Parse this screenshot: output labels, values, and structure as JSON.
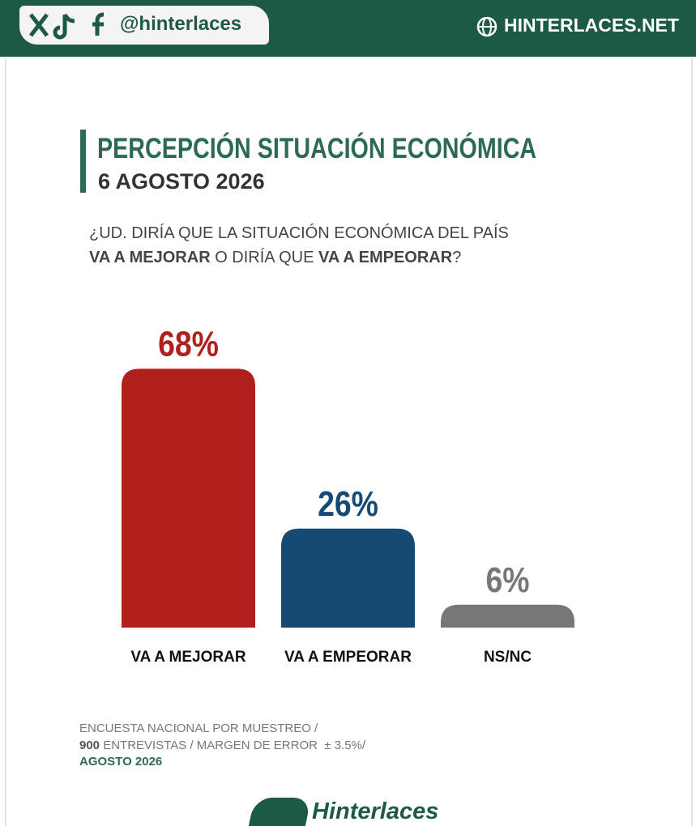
{
  "header": {
    "handle": "@hinterlaces",
    "website": "HINTERLACES.NET"
  },
  "chart_data": {
    "type": "bar",
    "title": "PERCEPCIÓN SITUACIÓN ECONÓMICA",
    "subtitle": "6 AGOSTO 2026",
    "question": {
      "line1": "¿UD. DIRÍA QUE LA SITUACIÓN ECONÓMICA DEL PAÍS",
      "line2": [
        "VA A MEJORAR",
        " O DIRÍA QUE ",
        "VA A EMPEORAR",
        "?"
      ]
    },
    "categories": [
      "VA A MEJORAR",
      "VA A EMPEORAR",
      "NS/NC"
    ],
    "values": [
      68,
      26,
      6
    ],
    "value_labels": [
      "68%",
      "26%",
      "6%"
    ],
    "colors": [
      "#b01f1c",
      "#174a73",
      "#777777"
    ],
    "footer": {
      "line1": "ENCUESTA NACIONAL POR MUESTREO /",
      "line2": [
        "900",
        " ENTREVISTAS / MARGEN DE ERROR  ± 3.5%/"
      ],
      "line3": "AGOSTO 2026"
    }
  },
  "logo": "Hinterlaces"
}
